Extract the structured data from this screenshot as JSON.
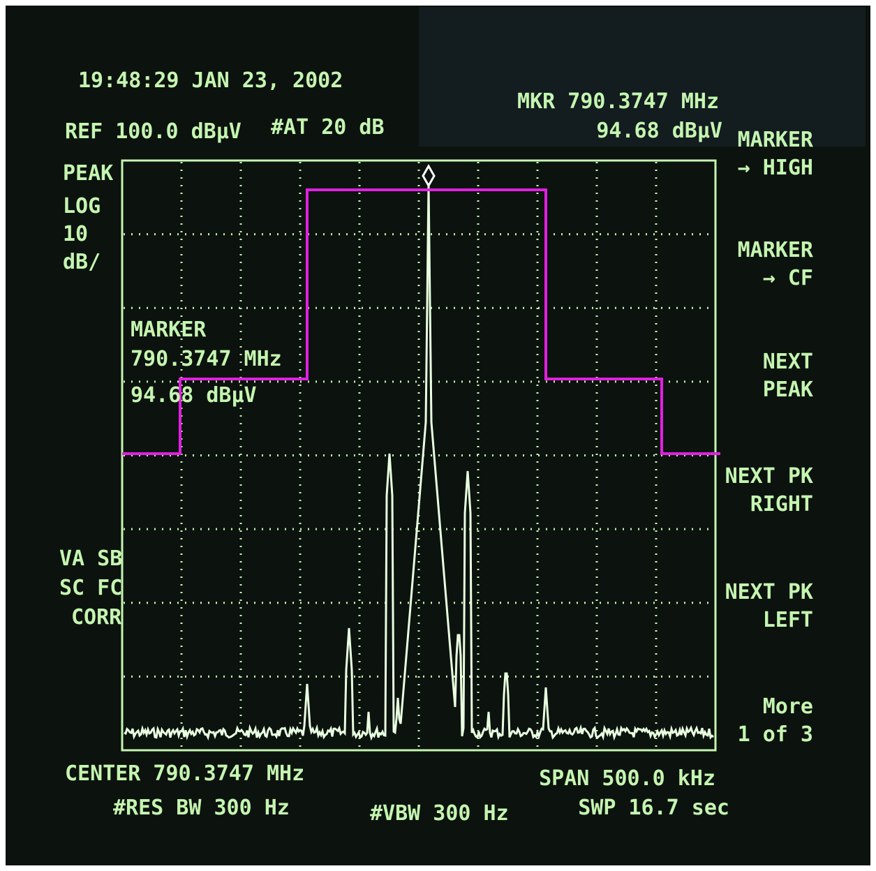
{
  "header": {
    "time": "19:48:29 JAN 23, 2002",
    "ref": "REF 100.0 dBµV",
    "atten": "#AT 20 dB",
    "marker_freq": "MKR 790.3747 MHz",
    "marker_level": "94.68 dBµV"
  },
  "left_top": [
    "PEAK",
    "LOG",
    "10",
    "dB/"
  ],
  "left_bottom": [
    "VA SB",
    "SC FC",
    "CORR"
  ],
  "marker_box": [
    "MARKER",
    "790.3747 MHz",
    "94.68 dBµV"
  ],
  "softkeys": [
    [
      "MARKER",
      "→ HIGH"
    ],
    [
      "MARKER",
      "→ CF"
    ],
    [
      "NEXT",
      "PEAK"
    ],
    [
      "NEXT PK",
      "RIGHT"
    ],
    [
      "NEXT PK",
      "LEFT"
    ],
    [
      "More",
      "1 of 3"
    ]
  ],
  "footer": {
    "center": "CENTER 790.3747 MHz",
    "res_bw": "#RES BW 300 Hz",
    "vbw": "#VBW 300 Hz",
    "span": "SPAN 500.0 kHz",
    "sweep": "SWP 16.7 sec"
  }
}
